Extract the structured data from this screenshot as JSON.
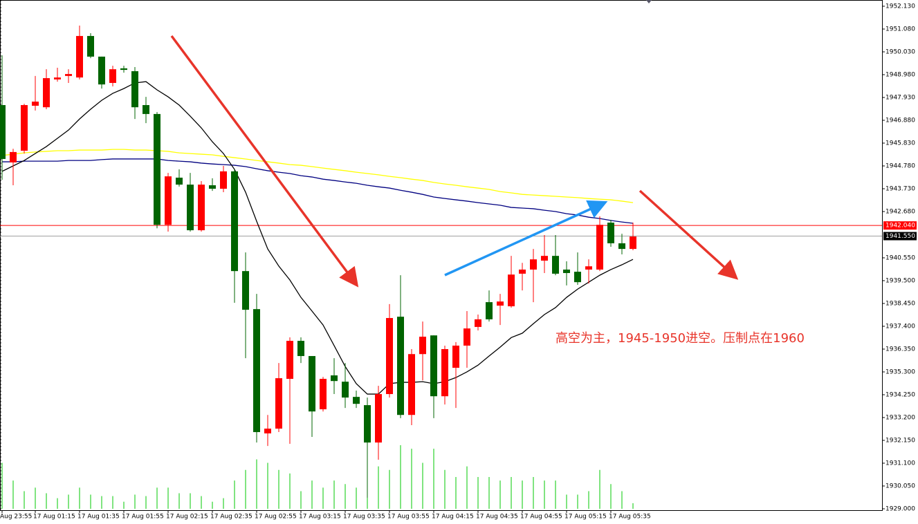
{
  "chart_data": {
    "type": "candlestick",
    "annotation": "高空为主，1945-1950进空。压制点在1960",
    "categories": [
      "Aug 23:55",
      null,
      null,
      "17 Aug 01:15",
      null,
      null,
      null,
      "17 Aug 01:35",
      null,
      null,
      null,
      "17 Aug 01:55",
      null,
      null,
      null,
      "17 Aug 02:15",
      null,
      null,
      null,
      "17 Aug 02:35",
      null,
      null,
      null,
      "17 Aug 02:55",
      null,
      null,
      null,
      "17 Aug 03:15",
      null,
      null,
      null,
      "17 Aug 03:35",
      null,
      null,
      null,
      "17 Aug 03:55",
      null,
      null,
      null,
      "17 Aug 04:15",
      null,
      null,
      null,
      "17 Aug 04:35",
      null,
      null,
      null,
      "17 Aug 04:55",
      null,
      null,
      null,
      "17 Aug 05:15",
      null,
      null,
      null,
      "17 Aug 05:35",
      null,
      null
    ],
    "candles": {
      "up_color": "#ff0000",
      "down_color": "#006400",
      "open": [
        1947.58,
        1944.94,
        1945.48,
        1947.55,
        1947.48,
        1948.76,
        1948.92,
        1948.85,
        1950.76,
        1949.81,
        1948.6,
        1949.27,
        1949.14,
        1947.58,
        1947.17,
        1942.07,
        1944.24,
        1943.92,
        1941.82,
        1943.89,
        1943.73,
        1944.53,
        1939.94,
        1938.19,
        1932.47,
        1932.69,
        1934.98,
        1936.73,
        1936.03,
        1933.58,
        1935.14,
        1934.85,
        1934.15,
        1933.77,
        1932.05,
        1934.28,
        1937.84,
        1933.32,
        1936.12,
        1936.98,
        1934.18,
        1935.49,
        1936.51,
        1937.37,
        1938.51,
        1938.35,
        1938.32,
        1939.82,
        1940.01,
        1940.42,
        1940.64,
        1940.01,
        1939.91,
        1940.01,
        1940.01,
        1942.17,
        1941.22,
        1940.96
      ],
      "high": [
        1949.87,
        1945.57,
        1947.64,
        1948.92,
        1949.23,
        1949.3,
        1949.23,
        1951.24,
        1950.89,
        1949.81,
        1949.39,
        1949.39,
        1949.33,
        1947.96,
        1947.26,
        1944.46,
        1944.62,
        1944.46,
        1944.08,
        1944.21,
        1944.78,
        1944.62,
        1940.8,
        1938.89,
        1933.32,
        1935.71,
        1936.89,
        1936.89,
        1936.03,
        1935.07,
        1935.93,
        1935.71,
        1934.44,
        1934.12,
        1934.66,
        1938.42,
        1939.75,
        1936.35,
        1937.62,
        1936.98,
        1936.51,
        1936.67,
        1938.1,
        1937.94,
        1939.05,
        1938.89,
        1940.64,
        1940.32,
        1940.96,
        1941.6,
        1941.6,
        1940.39,
        1940.8,
        1940.48,
        1942.46,
        1942.3,
        1941.66,
        1942.17
      ],
      "low": [
        1944.14,
        1943.89,
        1945.35,
        1947.33,
        1947.39,
        1948.66,
        1948.6,
        1948.76,
        1949.74,
        1948.34,
        1948.44,
        1949.07,
        1946.94,
        1946.75,
        1941.91,
        1941.76,
        1943.83,
        1941.76,
        1941.76,
        1943.63,
        1943.57,
        1938.48,
        1935.93,
        1932.05,
        1931.89,
        1932.53,
        1931.99,
        1935.71,
        1932.31,
        1933.48,
        1934.28,
        1933.64,
        1933.64,
        1929.51,
        1931.26,
        1934.12,
        1933.17,
        1932.85,
        1934.91,
        1933.17,
        1933.8,
        1933.64,
        1935.49,
        1937.21,
        1937.62,
        1937.46,
        1938.26,
        1939.05,
        1938.51,
        1939.85,
        1939.75,
        1939.28,
        1939.31,
        1939.37,
        1939.94,
        1941.06,
        1940.71,
        1940.9
      ],
      "close": [
        1945.1,
        1945.42,
        1947.58,
        1947.74,
        1948.82,
        1948.85,
        1949.01,
        1950.76,
        1949.81,
        1948.53,
        1949.23,
        1949.2,
        1947.48,
        1947.17,
        1942.07,
        1944.3,
        1943.92,
        1941.82,
        1943.92,
        1943.73,
        1944.53,
        1939.94,
        1938.16,
        1932.53,
        1932.69,
        1935.01,
        1936.73,
        1936.03,
        1933.48,
        1934.98,
        1934.88,
        1934.12,
        1933.83,
        1932.05,
        1934.28,
        1937.78,
        1933.32,
        1936.12,
        1936.92,
        1934.18,
        1936.35,
        1936.51,
        1937.3,
        1937.72,
        1937.72,
        1938.54,
        1939.78,
        1940.01,
        1940.48,
        1940.64,
        1939.82,
        1939.85,
        1939.43,
        1940.16,
        1942.07,
        1941.22,
        1940.96,
        1941.53
      ]
    },
    "series": [
      {
        "color": "#ffff00",
        "values": [
          1945.26,
          1945.32,
          1945.38,
          1945.42,
          1945.45,
          1945.48,
          1945.48,
          1945.51,
          1945.51,
          1945.51,
          1945.54,
          1945.54,
          1945.51,
          1945.51,
          1945.48,
          1945.45,
          1945.38,
          1945.35,
          1945.32,
          1945.29,
          1945.22,
          1945.16,
          1945.1,
          1945.03,
          1944.97,
          1944.91,
          1944.84,
          1944.81,
          1944.75,
          1944.68,
          1944.62,
          1944.56,
          1944.49,
          1944.43,
          1944.37,
          1944.3,
          1944.24,
          1944.17,
          1944.11,
          1944.02,
          1943.95,
          1943.89,
          1943.82,
          1943.76,
          1943.7,
          1943.6,
          1943.54,
          1943.47,
          1943.44,
          1943.41,
          1943.38,
          1943.35,
          1943.32,
          1943.28,
          1943.25,
          1943.22,
          1943.16,
          1943.09
        ]
      },
      {
        "color": "#000080",
        "values": [
          1944.97,
          1944.97,
          1945.0,
          1945.0,
          1945.0,
          1945.0,
          1945.03,
          1945.03,
          1945.03,
          1945.07,
          1945.1,
          1945.1,
          1945.1,
          1945.1,
          1945.1,
          1945.03,
          1945.0,
          1944.97,
          1944.91,
          1944.87,
          1944.84,
          1944.81,
          1944.75,
          1944.65,
          1944.56,
          1944.49,
          1944.43,
          1944.33,
          1944.27,
          1944.17,
          1944.11,
          1944.04,
          1943.98,
          1943.89,
          1943.82,
          1943.76,
          1943.66,
          1943.57,
          1943.47,
          1943.35,
          1943.28,
          1943.22,
          1943.16,
          1943.09,
          1943.03,
          1942.97,
          1942.87,
          1942.84,
          1942.81,
          1942.74,
          1942.68,
          1942.58,
          1942.52,
          1942.42,
          1942.36,
          1942.27,
          1942.2,
          1942.14
        ]
      },
      {
        "color": "#000000",
        "values": [
          1944.53,
          1944.78,
          1945.03,
          1945.35,
          1945.67,
          1946.05,
          1946.43,
          1946.94,
          1947.39,
          1947.8,
          1948.12,
          1948.34,
          1948.6,
          1948.66,
          1948.28,
          1947.96,
          1947.58,
          1947.07,
          1946.53,
          1945.89,
          1945.35,
          1944.62,
          1943.57,
          1942.23,
          1940.96,
          1940.17,
          1939.53,
          1938.73,
          1938.1,
          1937.46,
          1936.51,
          1935.55,
          1934.76,
          1934.28,
          1934.28,
          1934.76,
          1934.82,
          1934.82,
          1934.85,
          1934.76,
          1934.85,
          1935.04,
          1935.3,
          1935.61,
          1936.03,
          1936.44,
          1936.88,
          1937.08,
          1937.52,
          1937.94,
          1938.26,
          1938.73,
          1939.11,
          1939.43,
          1939.75,
          1940.01,
          1940.23,
          1940.48
        ]
      }
    ],
    "volume": {
      "color": "#00c800",
      "values": [
        65,
        40,
        25,
        30,
        22,
        15,
        20,
        30,
        20,
        18,
        18,
        10,
        20,
        18,
        30,
        30,
        22,
        22,
        18,
        10,
        15,
        40,
        55,
        70,
        65,
        55,
        50,
        25,
        40,
        30,
        40,
        35,
        30,
        70,
        60,
        55,
        90,
        85,
        65,
        85,
        55,
        45,
        60,
        45,
        45,
        40,
        45,
        40,
        45,
        40,
        40,
        20,
        20,
        25,
        55,
        35,
        25,
        8
      ]
    },
    "hlines": [
      {
        "value": 1942.04,
        "label": "1942.040",
        "color": "#ff0000",
        "label_color": "#ff0000"
      },
      {
        "value": 1941.55,
        "label": "1941.550",
        "color": "#a0a0a0",
        "label_color": "#000000"
      }
    ],
    "ylim": [
      1929.0,
      1952.13
    ],
    "yticks": [
      {
        "value": 1952.13,
        "label": "1952.130"
      },
      {
        "value": 1951.08,
        "label": "1951.080"
      },
      {
        "value": 1950.03,
        "label": "1950.030"
      },
      {
        "value": 1948.98,
        "label": "1948.980"
      },
      {
        "value": 1947.93,
        "label": "1947.930"
      },
      {
        "value": 1946.88,
        "label": "1946.880"
      },
      {
        "value": 1945.83,
        "label": "1945.830"
      },
      {
        "value": 1944.78,
        "label": "1944.780"
      },
      {
        "value": 1943.73,
        "label": "1943.730"
      },
      {
        "value": 1942.68,
        "label": "1942.680"
      },
      {
        "value": 1940.55,
        "label": "1940.550"
      },
      {
        "value": 1939.5,
        "label": "1939.500"
      },
      {
        "value": 1938.45,
        "label": "1938.450"
      },
      {
        "value": 1937.4,
        "label": "1937.400"
      },
      {
        "value": 1936.35,
        "label": "1936.350"
      },
      {
        "value": 1935.3,
        "label": "1935.300"
      },
      {
        "value": 1934.25,
        "label": "1934.250"
      },
      {
        "value": 1933.2,
        "label": "1933.200"
      },
      {
        "value": 1932.15,
        "label": "1932.150"
      },
      {
        "value": 1931.1,
        "label": "1931.100"
      },
      {
        "value": 1930.05,
        "label": "1930.050"
      },
      {
        "value": 1929.0,
        "label": "1929.000"
      }
    ]
  }
}
